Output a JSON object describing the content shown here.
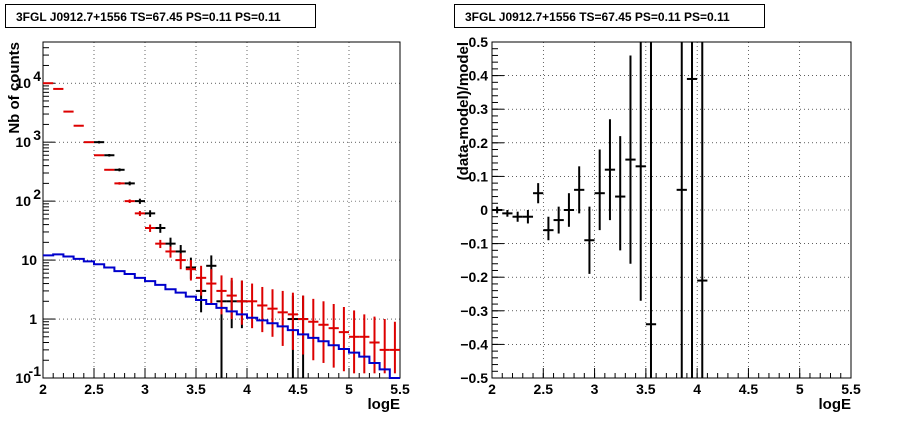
{
  "chart_data": [
    {
      "type": "line",
      "title": "3FGL J0912.7+1556 TS=67.45 PS=0.11 PS=0.11",
      "xlabel": "logE",
      "ylabel": "Nb of counts",
      "xlim": [
        2,
        5.5
      ],
      "ylim": [
        0.1,
        50000
      ],
      "yscale": "log",
      "grid": true,
      "x_ticks": [
        "2",
        "2.5",
        "3",
        "3.5",
        "4",
        "4.5",
        "5",
        "5.5"
      ],
      "y_ticks": [
        {
          "value": 0.1,
          "base": "10",
          "exp": "-1"
        },
        {
          "value": 1,
          "base": "1",
          "exp": ""
        },
        {
          "value": 10,
          "base": "10",
          "exp": ""
        },
        {
          "value": 100,
          "base": "10",
          "exp": "2"
        },
        {
          "value": 1000,
          "base": "10",
          "exp": "3"
        },
        {
          "value": 10000,
          "base": "10",
          "exp": "4"
        }
      ],
      "bin_width": 0.1,
      "series": [
        {
          "color": "#000000",
          "style": "errorbar",
          "x": [
            2.55,
            2.65,
            2.75,
            2.85,
            2.95,
            3.05,
            3.15,
            3.25,
            3.35,
            3.45,
            3.55,
            3.65,
            3.75,
            3.85,
            3.95,
            4.45,
            4.55
          ],
          "y": [
            1000,
            600,
            340,
            200,
            100,
            62,
            35,
            19,
            14,
            7.5,
            3,
            8,
            2,
            2,
            2,
            1,
            1
          ],
          "ylo": [
            950,
            570,
            320,
            185,
            90,
            54,
            29,
            15,
            10,
            4.8,
            1.3,
            4.5,
            0.1,
            0.7,
            0.7,
            0.1,
            0.1
          ],
          "yhi": [
            1050,
            630,
            360,
            215,
            110,
            70,
            41,
            24,
            18,
            11,
            5,
            12,
            4.5,
            4.5,
            4.5,
            2.5,
            2.5
          ]
        },
        {
          "color": "#dd0000",
          "style": "errorbar",
          "x": [
            2.05,
            2.15,
            2.25,
            2.35,
            2.45,
            2.55,
            2.65,
            2.75,
            2.85,
            2.95,
            3.05,
            3.15,
            3.25,
            3.35,
            3.45,
            3.55,
            3.65,
            3.75,
            3.85,
            3.95,
            4.05,
            4.15,
            4.25,
            4.35,
            4.45,
            4.55,
            4.65,
            4.75,
            4.85,
            4.95,
            5.05,
            5.15,
            5.25,
            5.35,
            5.45
          ],
          "y": [
            10000,
            8000,
            3300,
            1900,
            1000,
            600,
            340,
            200,
            100,
            62,
            35,
            19,
            14,
            10,
            7,
            5,
            4,
            3,
            2.5,
            2,
            2,
            1.7,
            1.5,
            1.3,
            1.2,
            1,
            0.9,
            0.8,
            0.7,
            0.6,
            0.5,
            0.5,
            0.4,
            0.3,
            0.3
          ],
          "ylo": [
            9900,
            7900,
            3250,
            1870,
            980,
            585,
            330,
            190,
            93,
            56,
            30,
            16,
            11,
            7,
            4.5,
            2.5,
            1.8,
            1.2,
            1,
            0.8,
            0.7,
            0.6,
            0.5,
            0.35,
            0.3,
            0.25,
            0.2,
            0.18,
            0.15,
            0.13,
            0.12,
            0.12,
            0.12,
            0.12,
            0.12
          ],
          "yhi": [
            10100,
            8100,
            3350,
            1930,
            1020,
            615,
            350,
            210,
            107,
            68,
            40,
            22,
            17,
            13,
            10,
            8,
            7,
            5.5,
            5,
            4.5,
            4,
            3.5,
            3.2,
            3,
            2.8,
            2.5,
            2.2,
            2,
            1.8,
            1.6,
            1.4,
            1.2,
            1.1,
            1,
            0.9
          ]
        },
        {
          "color": "#0000cc",
          "style": "step",
          "edges": [
            2.0,
            2.1,
            2.2,
            2.3,
            2.4,
            2.5,
            2.6,
            2.7,
            2.8,
            2.9,
            3.0,
            3.1,
            3.2,
            3.3,
            3.4,
            3.5,
            3.6,
            3.7,
            3.8,
            3.9,
            4.0,
            4.1,
            4.2,
            4.3,
            4.4,
            4.5,
            4.6,
            4.7,
            4.8,
            4.9,
            5.0,
            5.1,
            5.2,
            5.3,
            5.4,
            5.5
          ],
          "y": [
            12,
            12.5,
            11.5,
            10.5,
            9.5,
            8.5,
            7.5,
            6.5,
            5.8,
            5,
            4.4,
            3.8,
            3.2,
            2.8,
            2.4,
            2.1,
            1.8,
            1.55,
            1.35,
            1.2,
            1.05,
            0.95,
            0.85,
            0.75,
            0.65,
            0.55,
            0.48,
            0.42,
            0.36,
            0.31,
            0.27,
            0.23,
            0.18,
            0.14,
            0.1
          ]
        }
      ]
    },
    {
      "type": "scatter",
      "title": "3FGL J0912.7+1556 TS=67.45 PS=0.11 PS=0.11",
      "xlabel": "logE",
      "ylabel": "(data-model)/model",
      "xlim": [
        2,
        5.5
      ],
      "ylim": [
        -0.5,
        0.5
      ],
      "grid": true,
      "x_ticks": [
        "2",
        "2.5",
        "3",
        "3.5",
        "4",
        "4.5",
        "5",
        "5.5"
      ],
      "y_ticks": [
        "−0.5",
        "−0.4",
        "−0.3",
        "−0.2",
        "−0.1",
        "0",
        "0.1",
        "0.2",
        "0.3",
        "0.4",
        "0.5"
      ],
      "y_tick_values": [
        -0.5,
        -0.4,
        -0.3,
        -0.2,
        -0.1,
        0,
        0.1,
        0.2,
        0.3,
        0.4,
        0.5
      ],
      "bin_width": 0.1,
      "series": [
        {
          "color": "#000000",
          "style": "errorbar",
          "x": [
            2.05,
            2.15,
            2.25,
            2.35,
            2.45,
            2.55,
            2.65,
            2.75,
            2.85,
            2.95,
            3.05,
            3.15,
            3.25,
            3.35,
            3.45,
            3.55,
            3.85,
            3.95,
            4.05
          ],
          "y": [
            0.0,
            -0.01,
            -0.02,
            -0.02,
            0.05,
            -0.06,
            -0.03,
            0.0,
            0.06,
            -0.09,
            0.05,
            0.12,
            0.04,
            0.15,
            0.13,
            -0.34,
            0.06,
            0.39,
            -0.21
          ],
          "ylo": [
            -0.01,
            -0.02,
            -0.035,
            -0.04,
            0.02,
            -0.09,
            -0.07,
            -0.05,
            -0.01,
            -0.19,
            -0.06,
            -0.03,
            -0.12,
            -0.16,
            -0.27,
            -0.5,
            -0.5,
            -0.5,
            -0.5
          ],
          "yhi": [
            0.01,
            0.0,
            -0.005,
            0.0,
            0.08,
            -0.02,
            0.01,
            0.05,
            0.13,
            0.01,
            0.18,
            0.27,
            0.22,
            0.46,
            0.5,
            0.5,
            0.5,
            0.5,
            0.5
          ]
        }
      ]
    }
  ]
}
